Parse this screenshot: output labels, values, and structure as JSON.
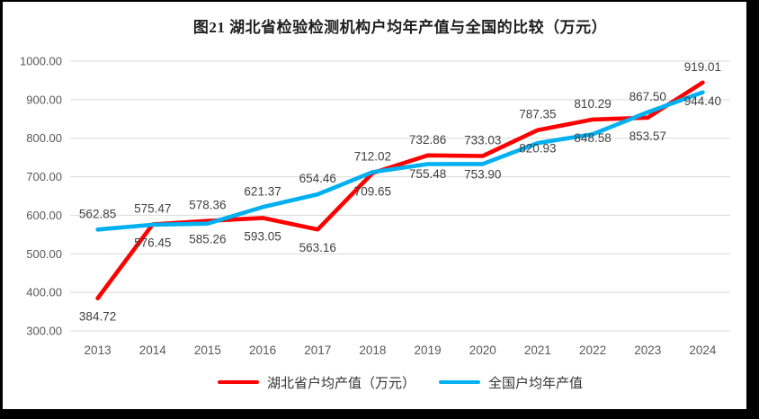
{
  "title": "图21  湖北省检验检测机构户均年产值与全国的比较（万元）",
  "chart_data": {
    "type": "line",
    "categories": [
      "2013",
      "2014",
      "2015",
      "2016",
      "2017",
      "2018",
      "2019",
      "2020",
      "2021",
      "2022",
      "2023",
      "2024"
    ],
    "series": [
      {
        "name": "湖北省户均产值（万元）",
        "color": "#FF0000",
        "label_position": "below",
        "values": [
          384.72,
          576.45,
          585.26,
          593.05,
          563.16,
          709.65,
          755.48,
          753.9,
          820.93,
          848.58,
          853.57,
          944.4
        ]
      },
      {
        "name": "全国户均年产值",
        "color": "#00B0F0",
        "label_position": "above",
        "values": [
          562.85,
          575.47,
          578.36,
          621.37,
          654.46,
          712.02,
          732.86,
          733.03,
          787.35,
          810.29,
          867.5,
          919.01
        ]
      }
    ],
    "ylim": [
      300,
      1000
    ],
    "ytick_step": 100,
    "value_decimals": 2,
    "grid": "horizontal",
    "legend_position": "bottom",
    "colors": {
      "gridline": "#D9D9D9",
      "axis_text": "#595959",
      "data_label_text": "#404040",
      "frame_border": "#000000",
      "background": "#FFFFFF"
    }
  }
}
